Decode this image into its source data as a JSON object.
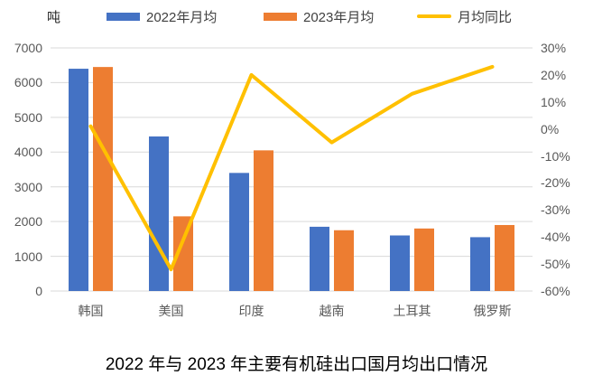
{
  "unit_label": "吨",
  "title": "2022 年与 2023 年主要有机硅出口国月均出口情况",
  "legend": {
    "items": [
      {
        "label": "2022年月均",
        "color": "#4472C4",
        "marker": "rect"
      },
      {
        "label": "2023年月均",
        "color": "#ED7D31",
        "marker": "rect"
      },
      {
        "label": "月均同比",
        "color": "#FFC000",
        "marker": "line"
      }
    ]
  },
  "chart_data": {
    "type": "bar",
    "subtype": "combo-bar-line",
    "title": "2022 年与 2023 年主要有机硅出口国月均出口情况",
    "categories": [
      "韩国",
      "美国",
      "印度",
      "越南",
      "土耳其",
      "俄罗斯"
    ],
    "series": [
      {
        "name": "2022年月均",
        "type": "bar",
        "axis": "left",
        "color": "#4472C4",
        "values": [
          6400,
          4450,
          3400,
          1850,
          1600,
          1550
        ]
      },
      {
        "name": "2023年月均",
        "type": "bar",
        "axis": "left",
        "color": "#ED7D31",
        "values": [
          6450,
          2150,
          4050,
          1750,
          1800,
          1900
        ]
      },
      {
        "name": "月均同比",
        "type": "line",
        "axis": "right",
        "color": "#FFC000",
        "values": [
          1,
          -52,
          20,
          -5,
          13,
          23
        ],
        "unit": "%"
      }
    ],
    "left_axis": {
      "label": "吨",
      "min": 0,
      "max": 7000,
      "tick_step": 1000,
      "ticks": [
        0,
        1000,
        2000,
        3000,
        4000,
        5000,
        6000,
        7000
      ]
    },
    "right_axis": {
      "min": -60,
      "max": 30,
      "tick_step": 10,
      "ticks": [
        "30%",
        "20%",
        "10%",
        "0%",
        "-10%",
        "-20%",
        "-30%",
        "-40%",
        "-50%",
        "-60%"
      ]
    },
    "grid": true,
    "legend_position": "top",
    "gridline_color": "#D9D9D9",
    "axis_text_color": "#595959"
  }
}
